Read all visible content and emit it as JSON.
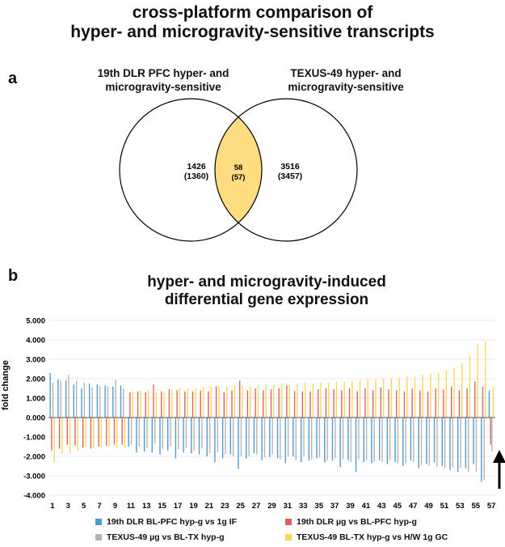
{
  "title_line1": "cross-platform comparison of",
  "title_line2": "hyper- and microgravity-sensitive transcripts",
  "panel_a": {
    "label": "a",
    "set_left": {
      "line1": "19th DLR PFC hyper- and",
      "line2": "microgravity-sensitive"
    },
    "set_right": {
      "line1": "TEXUS-49 hyper- and",
      "line2": "microgravity-sensitive"
    },
    "left_only": {
      "count": "1426",
      "sub": "(1360)"
    },
    "overlap": {
      "count": "58",
      "sub": "(57)"
    },
    "right_only": {
      "count": "3516",
      "sub": "(3457)"
    },
    "overlap_color": "#fddd80"
  },
  "panel_b": {
    "label": "b",
    "title_line1": "hyper- and microgravity-induced",
    "title_line2": "differential gene expression"
  },
  "chart_data": {
    "type": "bar",
    "title": "hyper- and microgravity-induced differential gene expression",
    "ylabel": "fold change",
    "xlabel": "",
    "ylim": [
      -4,
      5
    ],
    "yticks": [
      "5.000",
      "4.000",
      "3.000",
      "2.000",
      "1.000",
      "0.000",
      "-1.000",
      "-2.000",
      "-3.000",
      "-4.000"
    ],
    "categories": [
      1,
      2,
      3,
      4,
      5,
      6,
      7,
      8,
      9,
      10,
      11,
      12,
      13,
      14,
      15,
      16,
      17,
      18,
      19,
      20,
      21,
      22,
      23,
      24,
      25,
      26,
      27,
      28,
      29,
      30,
      31,
      32,
      33,
      34,
      35,
      36,
      37,
      38,
      39,
      40,
      41,
      42,
      43,
      44,
      45,
      46,
      47,
      48,
      49,
      50,
      51,
      52,
      53,
      54,
      55,
      56,
      57
    ],
    "xtick_labels": [
      "1",
      "3",
      "5",
      "7",
      "9",
      "11",
      "13",
      "15",
      "17",
      "19",
      "21",
      "23",
      "25",
      "27",
      "29",
      "31",
      "33",
      "35",
      "37",
      "39",
      "41",
      "43",
      "45",
      "47",
      "49",
      "51",
      "53",
      "55",
      "57"
    ],
    "series": [
      {
        "name": "19th DLR BL-PFC hyp-g vs 1g IF",
        "color": "#4b9bd1",
        "values": [
          2.3,
          1.95,
          1.9,
          1.7,
          1.5,
          1.75,
          1.7,
          1.65,
          1.6,
          1.65,
          -1.5,
          -1.8,
          -1.75,
          -1.8,
          -1.9,
          -1.7,
          -2.1,
          -1.8,
          -1.85,
          -1.9,
          -2.0,
          -2.3,
          -2.1,
          -1.9,
          -2.65,
          -2.1,
          -1.85,
          -2.2,
          -2.05,
          -2.1,
          -2.35,
          -2.0,
          -2.3,
          -2.2,
          -2.1,
          -2.3,
          -2.2,
          -2.55,
          -2.2,
          -2.8,
          -2.3,
          -2.35,
          -2.2,
          -2.4,
          -2.3,
          -2.5,
          -2.2,
          -2.6,
          -2.4,
          -2.3,
          -2.5,
          -2.7,
          -2.8,
          -2.6,
          -2.4,
          -3.3,
          1.4
        ]
      },
      {
        "name": "19th DLR µg vs BL-PFC hyp-g",
        "color": "#e06060",
        "values": [
          -1.7,
          -1.6,
          -1.4,
          -1.45,
          -1.55,
          -1.6,
          -1.5,
          -1.45,
          -1.4,
          -1.4,
          1.3,
          1.35,
          1.3,
          1.7,
          1.35,
          1.45,
          1.4,
          1.35,
          1.35,
          1.4,
          1.35,
          1.6,
          1.3,
          1.4,
          1.9,
          1.4,
          1.5,
          1.4,
          1.45,
          1.5,
          1.65,
          1.35,
          1.35,
          1.35,
          1.45,
          1.5,
          1.45,
          1.4,
          1.5,
          1.35,
          1.5,
          1.4,
          1.55,
          1.45,
          1.4,
          1.35,
          1.5,
          1.4,
          1.35,
          1.5,
          1.45,
          1.6,
          1.4,
          1.5,
          1.85,
          1.6,
          -1.4
        ]
      },
      {
        "name": "TEXUS-49 µg vs BL-TX hyp-g",
        "color": "#b4b4b4",
        "values": [
          1.8,
          1.9,
          2.2,
          1.9,
          1.8,
          1.55,
          1.6,
          1.6,
          1.95,
          1.5,
          -1.4,
          -1.5,
          -1.55,
          -1.35,
          -1.6,
          -1.5,
          -1.65,
          -1.55,
          -1.7,
          -1.6,
          -1.85,
          -1.8,
          -1.9,
          -2.0,
          -2.0,
          -2.0,
          -1.9,
          -2.05,
          -1.9,
          -2.15,
          -2.0,
          -2.2,
          -2.0,
          -2.15,
          -2.05,
          -2.2,
          -2.1,
          -2.15,
          -2.3,
          -2.15,
          -2.2,
          -2.25,
          -2.3,
          -2.2,
          -2.35,
          -2.35,
          -2.3,
          -2.45,
          -2.5,
          -2.55,
          -2.6,
          -2.55,
          -2.6,
          -2.8,
          -2.8,
          -3.2,
          -1.75
        ]
      },
      {
        "name": "TEXUS-49 BL-TX hyp-g vs H/W 1g GC",
        "color": "#fad65a",
        "values": [
          -2.3,
          -1.85,
          -1.85,
          -1.7,
          -1.5,
          -1.55,
          -1.55,
          -1.5,
          -1.55,
          -1.55,
          1.35,
          1.4,
          1.4,
          1.3,
          1.3,
          1.4,
          1.5,
          1.5,
          1.5,
          1.55,
          1.6,
          1.65,
          1.6,
          1.65,
          1.65,
          1.6,
          1.7,
          1.7,
          1.7,
          1.75,
          1.7,
          1.75,
          1.8,
          1.75,
          1.8,
          1.8,
          1.85,
          1.85,
          1.9,
          1.9,
          1.95,
          2.0,
          2.0,
          2.05,
          2.05,
          2.1,
          2.1,
          2.2,
          2.25,
          2.3,
          2.45,
          2.55,
          2.8,
          3.2,
          3.8,
          3.9,
          1.6
        ]
      }
    ],
    "legend_position": "bottom",
    "annotation": "upward arrow under bar 57"
  }
}
